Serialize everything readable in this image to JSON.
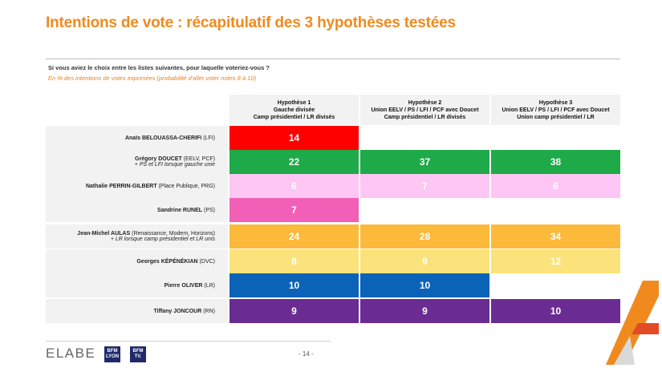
{
  "title": "Intentions de vote : récapitulatif des 3 hypothèses testées",
  "question": "Si vous aviez le choix entre les listes suivantes, pour laquelle voteriez-vous ?",
  "subquestion": "En % des intentions de votes exprimées (probabilité d'aller voter notes 8 à 10)",
  "hypotheses": [
    {
      "l1": "Hypothèse 1",
      "l2": "Gauche divisée",
      "l3": "Camp présidentiel / LR divisés"
    },
    {
      "l1": "Hypothèse 2",
      "l2": "Union EELV / PS / LFI / PCF avec Doucet",
      "l3": "Camp présidentiel / LR divisés"
    },
    {
      "l1": "Hypothèse 3",
      "l2": "Union EELV / PS / LFI / PCF avec Doucet",
      "l3": "Union camp présidentiel / LR"
    }
  ],
  "rows": [
    {
      "name": "Anaïs BELOUASSA-CHERIFI",
      "party": " (LFI)",
      "note": "",
      "values": [
        "14",
        "",
        ""
      ],
      "color": "#ff0000"
    },
    {
      "name": "Grégory DOUCET",
      "party": " (EELV, PCF)",
      "note": "+ PS et LFI lorsque gauche unie",
      "values": [
        "22",
        "37",
        "38"
      ],
      "color": "#1eaa48"
    },
    {
      "name": "Nathalie PERRIN-GILBERT",
      "party": " (Place Publique, PRG)",
      "note": "",
      "values": [
        "6",
        "7",
        "6"
      ],
      "color": "#fdc6f4"
    },
    {
      "name": "Sandrine RUNEL",
      "party": " (PS)",
      "note": "",
      "values": [
        "7",
        "",
        ""
      ],
      "color": "#f15fb7"
    },
    {
      "name": "Jean-Michel AULAS",
      "party": " (Renaissance, Modem, Horizons)",
      "note": "+ LR lorsque camp présidentiel et LR unis",
      "values": [
        "24",
        "28",
        "34"
      ],
      "color": "#fbba3a"
    },
    {
      "name": "Georges KÉPÉNÉKIAN",
      "party": " (DVC)",
      "note": "",
      "values": [
        "8",
        "9",
        "12"
      ],
      "color": "#fbe27a"
    },
    {
      "name": "Pierre OLIVER",
      "party": " (LR)",
      "note": "",
      "values": [
        "10",
        "10",
        ""
      ],
      "color": "#0a63b7"
    },
    {
      "name": "Tiffany JONCOUR",
      "party": " (RN)",
      "note": "",
      "values": [
        "9",
        "9",
        "10"
      ],
      "color": "#6a2c92"
    }
  ],
  "footer": {
    "brand": "ELABE",
    "badge1_top": "BFM",
    "badge1_bottom": "LYON",
    "badge2_top": "BFM",
    "badge2_bottom": "TV.",
    "page": "- 14 -"
  }
}
